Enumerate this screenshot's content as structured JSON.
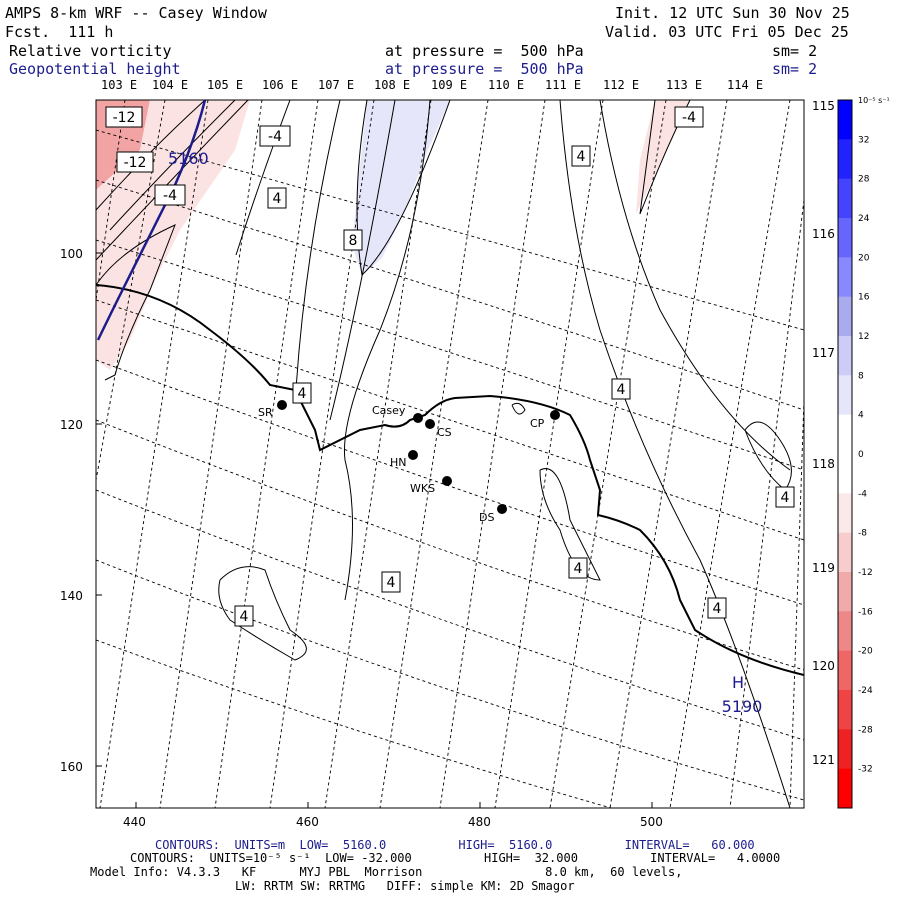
{
  "header": {
    "title": "AMPS 8-km WRF -- Casey Window",
    "forecast": "Fcst.  111 h",
    "init": "Init. 12 UTC Sun 30 Nov 25",
    "valid": "Valid. 03 UTC Fri 05 Dec 25",
    "field1": {
      "name": "Relative vorticity",
      "pressure": "at pressure =  500 hPa",
      "sm": "sm= 2"
    },
    "field2": {
      "name": "Geopotential height",
      "pressure": "at pressure =  500 hPa",
      "sm": "sm= 2"
    }
  },
  "lon_labels": [
    "103 E",
    "104 E",
    "105 E",
    "106 E",
    "107 E",
    "108 E",
    "109 E",
    "110 E",
    "111 E",
    "112 E",
    "113 E",
    "114 E"
  ],
  "lat_labels": [
    "115 E",
    "116 E",
    "117 E",
    "118 E",
    "119 E",
    "120 E",
    "121 E"
  ],
  "x_ticks": [
    "440",
    "460",
    "480",
    "500"
  ],
  "y_ticks": [
    "100",
    "120",
    "140",
    "160"
  ],
  "stations": [
    {
      "name": "SR"
    },
    {
      "name": "Casey"
    },
    {
      "name": "CS"
    },
    {
      "name": "CP"
    },
    {
      "name": "HN"
    },
    {
      "name": "WKS"
    },
    {
      "name": "DS"
    }
  ],
  "contour_labels": [
    "-12",
    "-12",
    "-4",
    "-4",
    "4",
    "-4",
    "4",
    "8",
    "4",
    "4",
    "4",
    "4",
    "4",
    "4",
    "4",
    "4"
  ],
  "height_label": "5160",
  "high": {
    "symbol": "H",
    "value": "5190"
  },
  "colorbar": {
    "units": "10⁻⁵ s⁻¹",
    "labels": [
      "32",
      "28",
      "24",
      "20",
      "16",
      "12",
      "8",
      "4",
      "0",
      "-4",
      "-8",
      "-12",
      "-16",
      "-20",
      "-24",
      "-28",
      "-32"
    ],
    "colors": [
      "#0000ff",
      "#2222ff",
      "#4444ff",
      "#6666ff",
      "#8888ff",
      "#aaaaee",
      "#ccccf6",
      "#e6e6fb",
      "#ffffff",
      "#ffffff",
      "#fbe8e8",
      "#f6cccc",
      "#f0aaaa",
      "#ee8888",
      "#ee6666",
      "#ee4444",
      "#ee2222",
      "#ff0000"
    ]
  },
  "footer": {
    "line1": "CONTOURS:  UNITS=m  LOW=  5160.0          HIGH=  5160.0          INTERVAL=   60.000",
    "line2": "CONTOURS:  UNITS=10⁻⁵ s⁻¹  LOW= -32.000          HIGH=  32.000          INTERVAL=   4.0000",
    "line3": "Model Info: V4.3.3   KF      MYJ PBL  Morrison                 8.0 km,  60 levels,",
    "line4": "LW: RRTM SW: RRTMG   DIFF: simple KM: 2D Smagor"
  }
}
